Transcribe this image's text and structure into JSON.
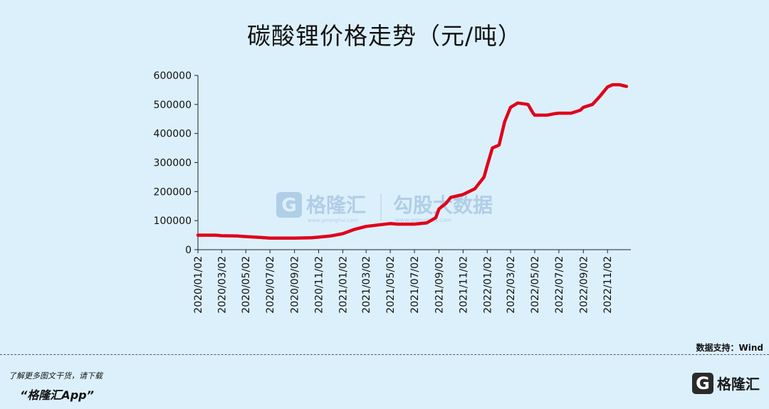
{
  "title": "碳酸锂价格走势（元/吨）",
  "source_label": "数据支持：Wind",
  "footer": {
    "tip": "了解更多图文干货，请下载",
    "app": "“格隆汇App”"
  },
  "logo": {
    "mark": "G",
    "name": "格隆汇"
  },
  "watermark": {
    "brand": "格隆汇",
    "url1": "www.gelonghui.com",
    "brand2": "勾股大数据",
    "url2": "www.gogudata.com"
  },
  "chart_data": {
    "type": "line",
    "title": "碳酸锂价格走势（元/吨）",
    "xlabel": "",
    "ylabel": "",
    "ylim": [
      0,
      600000
    ],
    "yticks": [
      0,
      100000,
      200000,
      300000,
      400000,
      500000,
      600000
    ],
    "xticks": [
      "2020/01/02",
      "2020/03/02",
      "2020/05/02",
      "2020/07/02",
      "2020/09/02",
      "2020/11/02",
      "2021/01/02",
      "2021/03/02",
      "2021/05/02",
      "2021/07/02",
      "2021/09/02",
      "2021/11/02",
      "2022/01/02",
      "2022/03/02",
      "2022/05/02",
      "2022/07/02",
      "2022/09/02",
      "2022/11/02"
    ],
    "grid": false,
    "series": [
      {
        "color": "#e0001b",
        "points": [
          [
            "2020/01/02",
            50000
          ],
          [
            "2020/02/15",
            50000
          ],
          [
            "2020/03/02",
            48000
          ],
          [
            "2020/04/10",
            47000
          ],
          [
            "2020/05/02",
            45000
          ],
          [
            "2020/06/10",
            42000
          ],
          [
            "2020/07/02",
            40000
          ],
          [
            "2020/08/15",
            40000
          ],
          [
            "2020/09/02",
            40000
          ],
          [
            "2020/10/15",
            41000
          ],
          [
            "2020/11/02",
            43000
          ],
          [
            "2020/12/02",
            47000
          ],
          [
            "2021/01/02",
            55000
          ],
          [
            "2021/02/01",
            70000
          ],
          [
            "2021/03/02",
            80000
          ],
          [
            "2021/04/01",
            85000
          ],
          [
            "2021/05/02",
            90000
          ],
          [
            "2021/05/20",
            88000
          ],
          [
            "2021/06/15",
            88000
          ],
          [
            "2021/07/02",
            88000
          ],
          [
            "2021/08/02",
            92000
          ],
          [
            "2021/08/25",
            110000
          ],
          [
            "2021/09/02",
            140000
          ],
          [
            "2021/09/20",
            160000
          ],
          [
            "2021/10/02",
            180000
          ],
          [
            "2021/11/02",
            190000
          ],
          [
            "2021/12/02",
            210000
          ],
          [
            "2021/12/25",
            250000
          ],
          [
            "2022/01/02",
            290000
          ],
          [
            "2022/01/15",
            350000
          ],
          [
            "2022/02/01",
            360000
          ],
          [
            "2022/02/15",
            440000
          ],
          [
            "2022/03/02",
            490000
          ],
          [
            "2022/03/20",
            505000
          ],
          [
            "2022/04/15",
            500000
          ],
          [
            "2022/04/28",
            470000
          ],
          [
            "2022/05/02",
            463000
          ],
          [
            "2022/06/02",
            463000
          ],
          [
            "2022/06/20",
            468000
          ],
          [
            "2022/07/02",
            470000
          ],
          [
            "2022/08/02",
            470000
          ],
          [
            "2022/08/25",
            480000
          ],
          [
            "2022/09/02",
            490000
          ],
          [
            "2022/09/25",
            500000
          ],
          [
            "2022/10/15",
            530000
          ],
          [
            "2022/11/02",
            560000
          ],
          [
            "2022/11/15",
            568000
          ],
          [
            "2022/12/02",
            568000
          ],
          [
            "2022/12/20",
            562000
          ]
        ]
      }
    ]
  }
}
